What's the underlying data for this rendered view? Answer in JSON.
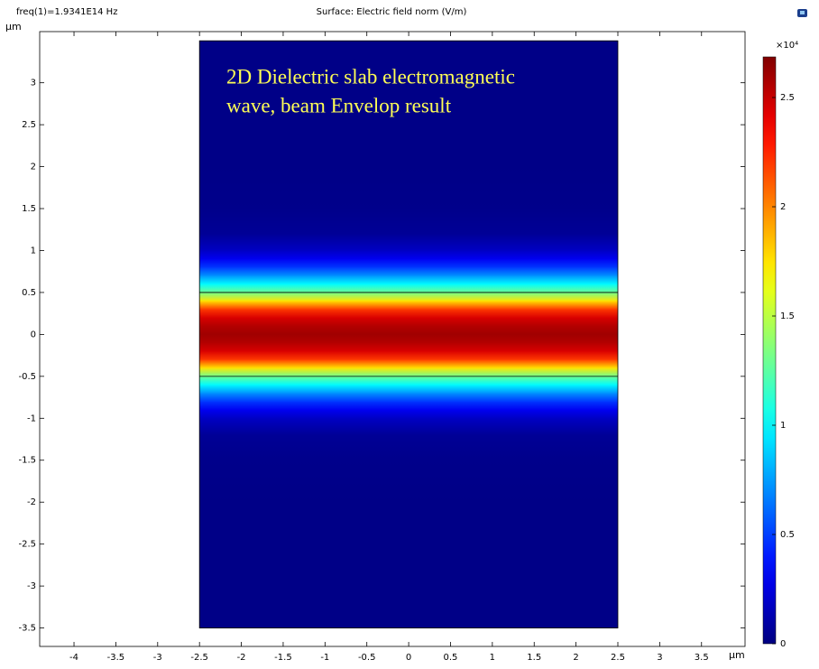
{
  "chart_data": {
    "type": "surface",
    "title": "Surface: Electric field norm (V/m)",
    "subtitle": "freq(1)=1.9341E14 Hz",
    "xlabel": "µm",
    "ylabel": "µm",
    "annotation": [
      "2D Dielectric slab electromagnetic",
      "wave, beam  Envelop result"
    ],
    "annotation_color": "#ffff55",
    "xlim": [
      -4.41,
      4.02
    ],
    "ylim": [
      -3.72,
      3.61
    ],
    "xticks": [
      -4,
      -3.5,
      -3,
      -2.5,
      -2,
      -1.5,
      -1,
      -0.5,
      0,
      0.5,
      1,
      1.5,
      2,
      2.5,
      3,
      3.5
    ],
    "yticks": [
      -3.5,
      -3,
      -2.5,
      -2,
      -1.5,
      -1,
      -0.5,
      0,
      0.5,
      1,
      1.5,
      2,
      2.5,
      3
    ],
    "domain": {
      "x": [
        -2.5,
        2.5
      ],
      "y": [
        -3.5,
        3.5
      ]
    },
    "slab_boundaries": [
      -0.5,
      0.5
    ],
    "profile": {
      "y": [
        -3.5,
        -2.5,
        -2,
        -1.5,
        -1.2,
        -1,
        -0.9,
        -0.8,
        -0.7,
        -0.6,
        -0.5,
        -0.4,
        -0.3,
        -0.2,
        -0.1,
        0,
        0.1,
        0.2,
        0.3,
        0.4,
        0.5,
        0.6,
        0.7,
        0.8,
        0.9,
        1,
        1.2,
        1.5,
        2,
        2.5,
        3.5
      ],
      "values": [
        0.02,
        0.02,
        0.02,
        0.03,
        0.06,
        0.18,
        0.3,
        0.48,
        0.72,
        1.0,
        1.3,
        1.75,
        2.2,
        2.45,
        2.55,
        2.6,
        2.55,
        2.45,
        2.2,
        1.75,
        1.3,
        1.0,
        0.72,
        0.48,
        0.3,
        0.18,
        0.06,
        0.03,
        0.02,
        0.02,
        0.02
      ]
    },
    "colormap": "jet",
    "clim": [
      0,
      2.686
    ],
    "colorbar_ticks": [
      0,
      0.5,
      1,
      1.5,
      2,
      2.5
    ],
    "colorbar_multiplier": "×10⁴"
  }
}
